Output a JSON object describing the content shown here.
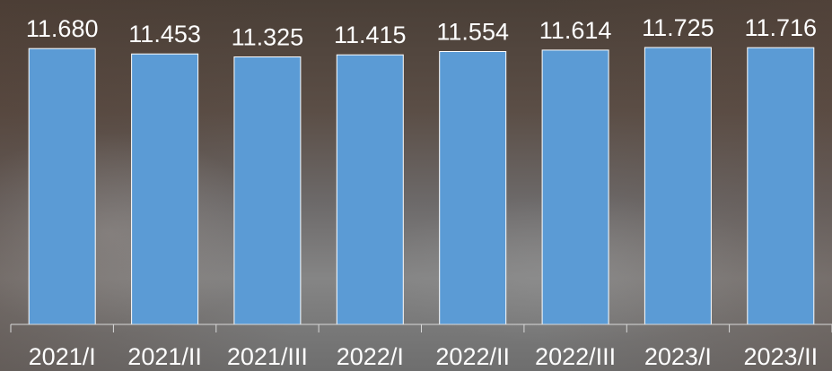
{
  "chart_data": {
    "type": "bar",
    "title": "",
    "xlabel": "",
    "ylabel": "",
    "categories": [
      "2021/I",
      "2021/II",
      "2021/III",
      "2022/I",
      "2022/II",
      "2022/III",
      "2023/I",
      "2023/II"
    ],
    "values": [
      11.68,
      11.453,
      11.325,
      11.415,
      11.554,
      11.614,
      11.725,
      11.716
    ],
    "value_labels": [
      "11.680",
      "11.453",
      "11.325",
      "11.415",
      "11.554",
      "11.614",
      "11.725",
      "11.716"
    ],
    "ylim": [
      0,
      11.725
    ],
    "grid": false,
    "legend": "none",
    "colors": {
      "bar_fill": "#5b9bd5",
      "bar_edge": "#ffffff",
      "text": "#ffffff",
      "axis": "#d9d9d9"
    }
  }
}
